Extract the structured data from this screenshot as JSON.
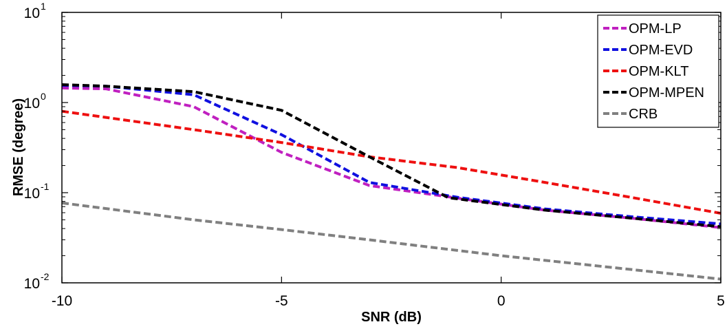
{
  "chart_data": {
    "type": "line",
    "xlabel": "SNR (dB)",
    "ylabel": "RMSE (degree)",
    "xlim": [
      -10,
      5
    ],
    "ylim": [
      0.01,
      10
    ],
    "yscale": "log",
    "grid": false,
    "legend_position": "top-right",
    "x_ticks": [
      {
        "value": -10,
        "label": "-10"
      },
      {
        "value": -5,
        "label": "-5"
      },
      {
        "value": 0,
        "label": "0"
      },
      {
        "value": 5,
        "label": "5"
      }
    ],
    "y_ticks": [
      {
        "value": 0.01,
        "base": "10",
        "exp": "-2"
      },
      {
        "value": 0.1,
        "base": "10",
        "exp": "-1"
      },
      {
        "value": 1,
        "base": "10",
        "exp": "0"
      },
      {
        "value": 10,
        "base": "10",
        "exp": "1"
      }
    ],
    "series": [
      {
        "name": "OPM-LP",
        "color": "#c020c0",
        "points": [
          [
            -10,
            1.45
          ],
          [
            -9,
            1.42
          ],
          [
            -7,
            0.9
          ],
          [
            -5,
            0.28
          ],
          [
            -3,
            0.12
          ],
          [
            -1,
            0.087
          ],
          [
            1,
            0.064
          ],
          [
            3,
            0.052
          ],
          [
            5,
            0.041
          ]
        ]
      },
      {
        "name": "OPM-EVD",
        "color": "#1010e0",
        "points": [
          [
            -10,
            1.55
          ],
          [
            -9,
            1.52
          ],
          [
            -7,
            1.22
          ],
          [
            -5,
            0.44
          ],
          [
            -3,
            0.13
          ],
          [
            -1,
            0.089
          ],
          [
            1,
            0.066
          ],
          [
            3,
            0.054
          ],
          [
            5,
            0.045
          ]
        ]
      },
      {
        "name": "OPM-KLT",
        "color": "#ee1010",
        "points": [
          [
            -10,
            0.8
          ],
          [
            -7,
            0.5
          ],
          [
            -5,
            0.36
          ],
          [
            -3,
            0.25
          ],
          [
            -1,
            0.19
          ],
          [
            1,
            0.13
          ],
          [
            3,
            0.088
          ],
          [
            5,
            0.059
          ]
        ]
      },
      {
        "name": "OPM-MPEN",
        "color": "#000000",
        "points": [
          [
            -10,
            1.58
          ],
          [
            -9,
            1.52
          ],
          [
            -7,
            1.32
          ],
          [
            -5,
            0.82
          ],
          [
            -3,
            0.25
          ],
          [
            -1.2,
            0.088
          ],
          [
            1,
            0.064
          ],
          [
            3,
            0.052
          ],
          [
            5,
            0.042
          ]
        ]
      },
      {
        "name": "CRB",
        "color": "#808080",
        "points": [
          [
            -10,
            0.077
          ],
          [
            -7,
            0.05
          ],
          [
            -5,
            0.039
          ],
          [
            -3,
            0.03
          ],
          [
            0,
            0.02
          ],
          [
            3,
            0.014
          ],
          [
            5,
            0.011
          ]
        ]
      }
    ]
  }
}
